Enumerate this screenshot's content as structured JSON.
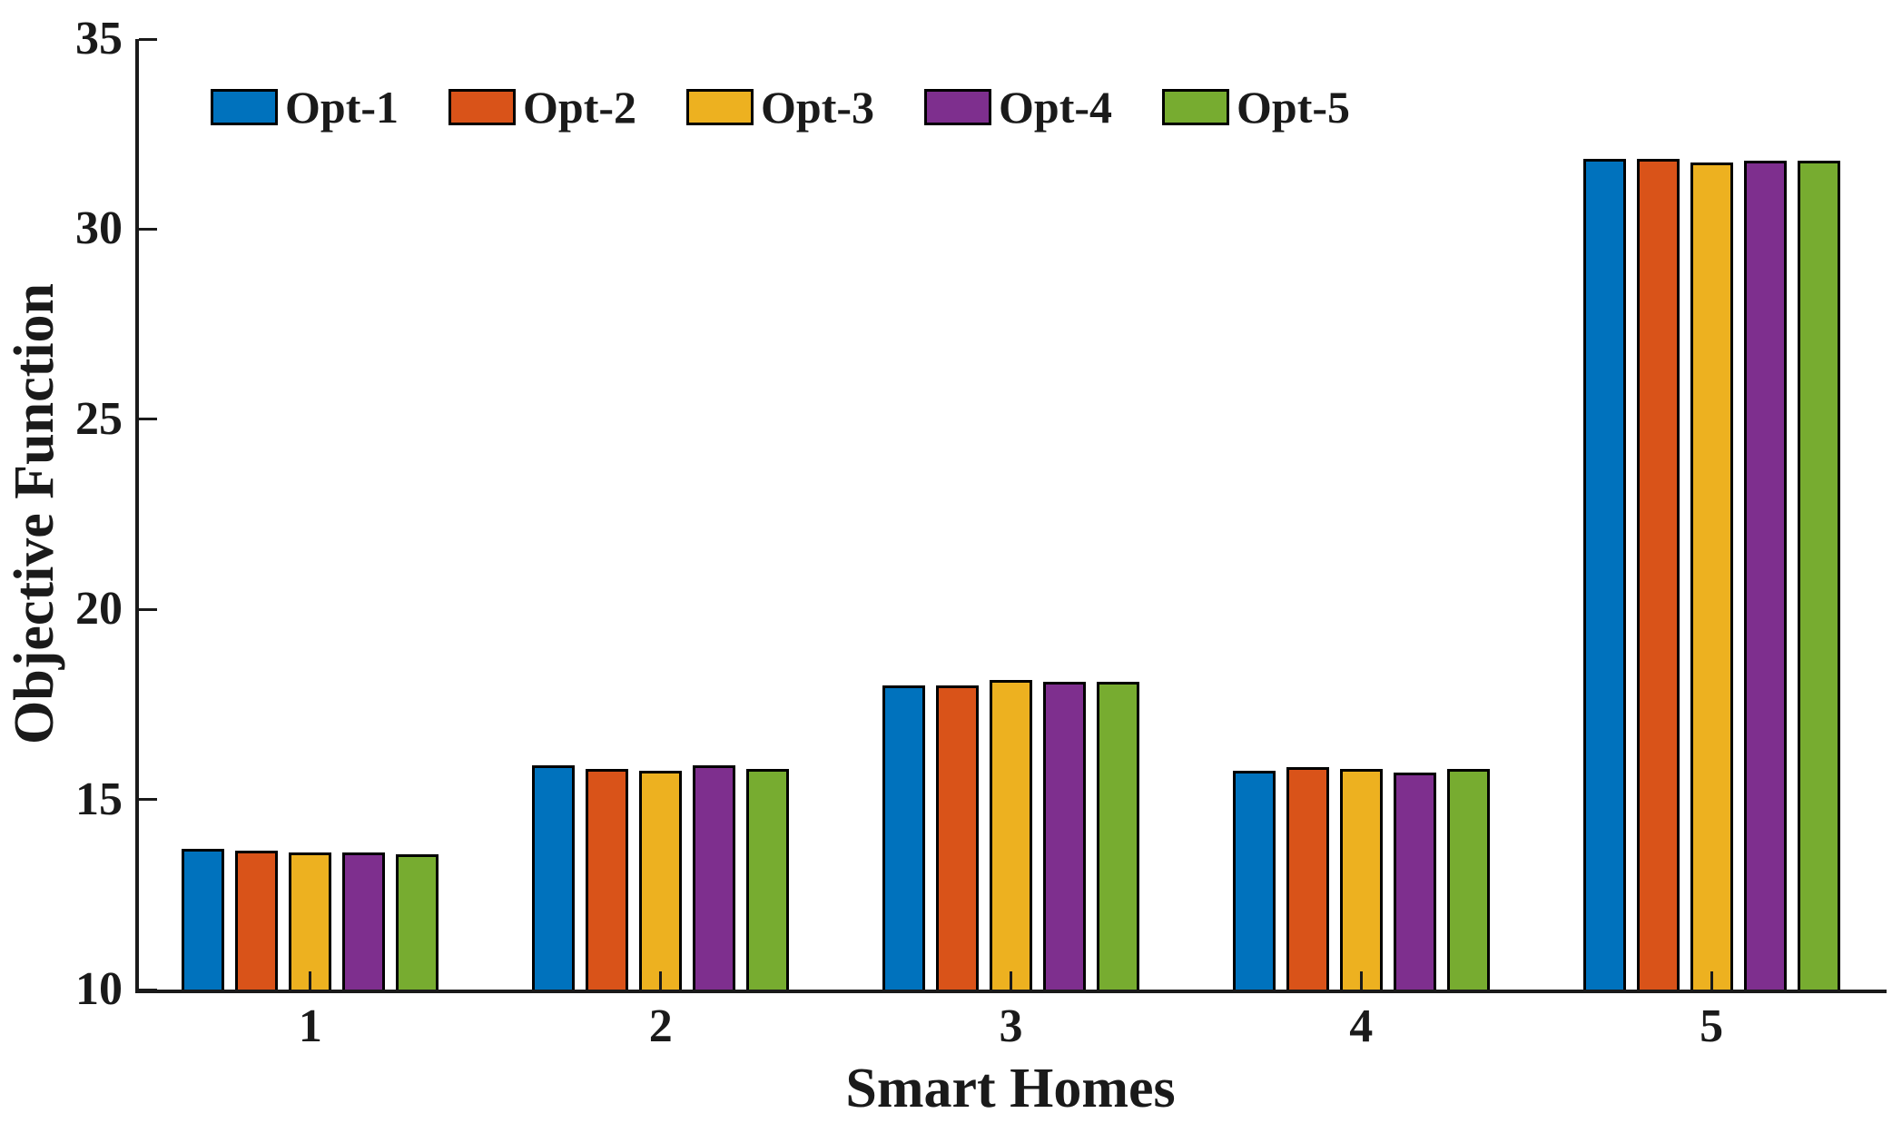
{
  "chart_data": {
    "type": "bar",
    "title": "",
    "xlabel": "Smart Homes",
    "ylabel": "Objective Function",
    "categories": [
      "1",
      "2",
      "3",
      "4",
      "5"
    ],
    "series": [
      {
        "name": "Opt-1",
        "color": "#0072BD",
        "values": [
          13.7,
          15.9,
          18.0,
          15.75,
          31.85
        ]
      },
      {
        "name": "Opt-2",
        "color": "#D95319",
        "values": [
          13.65,
          15.8,
          18.0,
          15.85,
          31.85
        ]
      },
      {
        "name": "Opt-3",
        "color": "#EDB120",
        "values": [
          13.6,
          15.75,
          18.15,
          15.8,
          31.75
        ]
      },
      {
        "name": "Opt-4",
        "color": "#7E2F8E",
        "values": [
          13.6,
          15.9,
          18.1,
          15.7,
          31.8
        ]
      },
      {
        "name": "Opt-5",
        "color": "#77AC30",
        "values": [
          13.55,
          15.8,
          18.1,
          15.8,
          31.8
        ]
      }
    ],
    "ylim": [
      10,
      35
    ],
    "yticks": [
      10,
      15,
      20,
      25,
      30,
      35
    ],
    "grid": false,
    "legend_position": "top-left-horizontal",
    "bar_edge_color": "#000000",
    "axis_color": "#1a1a1a",
    "background": "#ffffff"
  }
}
